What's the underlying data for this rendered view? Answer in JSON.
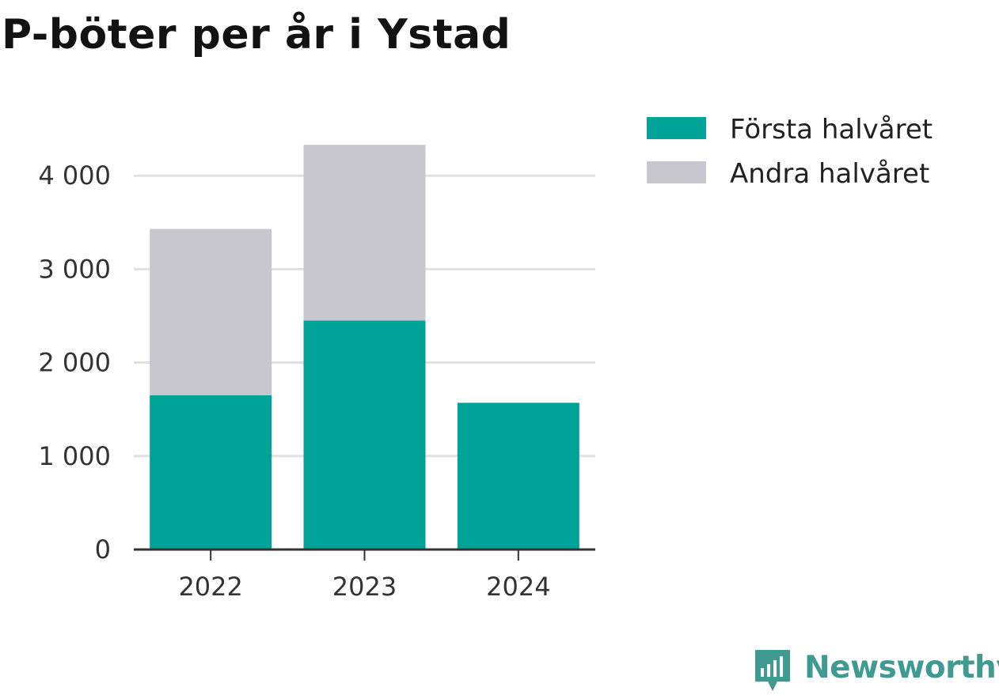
{
  "title": "P-böter per år i Ystad",
  "chart_data": {
    "type": "bar",
    "stacked": true,
    "categories": [
      "2022",
      "2023",
      "2024"
    ],
    "series": [
      {
        "name": "Första halvåret",
        "color": "#00a398",
        "values": [
          1650,
          2450,
          1570
        ]
      },
      {
        "name": "Andra halvåret",
        "color": "#c8c7cf",
        "values": [
          1780,
          1880,
          0
        ]
      }
    ],
    "ylim": [
      0,
      4340
    ],
    "yticks": [
      0,
      1000,
      2000,
      3000,
      4000
    ],
    "ytick_labels": [
      "0",
      "1 000",
      "2 000",
      "3 000",
      "4 000"
    ],
    "grid": true,
    "legend_position": "top-right",
    "xlabel": "",
    "ylabel": ""
  },
  "brand": {
    "name": "Newsworthy",
    "color": "#3f9a92",
    "icon": "newsworthy-logo-icon"
  }
}
